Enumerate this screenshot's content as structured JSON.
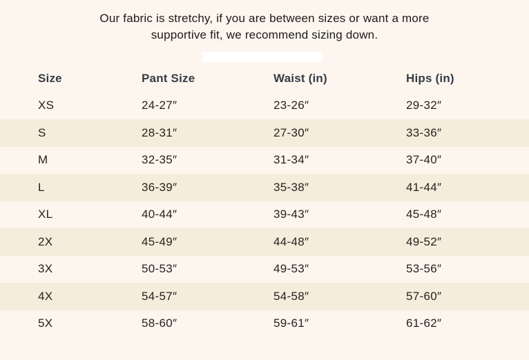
{
  "theme": {
    "page_background": "#fcf6ee",
    "row_stripe": "#f5ecdc",
    "body_text": "#26221e",
    "header_text": "#363b45",
    "intro_text": "#1d1a18",
    "bar_color": "#ffffff"
  },
  "intro": {
    "line1": "Our fabric is stretchy, if you are between sizes or want a more",
    "line2": "supportive fit, we recommend sizing down."
  },
  "size_chart": {
    "columns": [
      "Size",
      "Pant Size",
      "Waist (in)",
      "Hips (in)"
    ],
    "rows": [
      {
        "size": "XS",
        "pant_size": "24-27″",
        "waist": "23-26″",
        "hips": "29-32″"
      },
      {
        "size": "S",
        "pant_size": "28-31″",
        "waist": "27-30″",
        "hips": "33-36″"
      },
      {
        "size": "M",
        "pant_size": "32-35″",
        "waist": "31-34″",
        "hips": "37-40″"
      },
      {
        "size": "L",
        "pant_size": "36-39″",
        "waist": "35-38″",
        "hips": "41-44″"
      },
      {
        "size": "XL",
        "pant_size": "40-44″",
        "waist": "39-43″",
        "hips": "45-48″"
      },
      {
        "size": "2X",
        "pant_size": "45-49″",
        "waist": "44-48″",
        "hips": "49-52″"
      },
      {
        "size": "3X",
        "pant_size": "50-53″",
        "waist": "49-53″",
        "hips": "53-56″"
      },
      {
        "size": "4X",
        "pant_size": "54-57″",
        "waist": "54-58″",
        "hips": "57-60″"
      },
      {
        "size": "5X",
        "pant_size": "58-60″",
        "waist": "59-61″",
        "hips": "61-62″"
      }
    ]
  }
}
